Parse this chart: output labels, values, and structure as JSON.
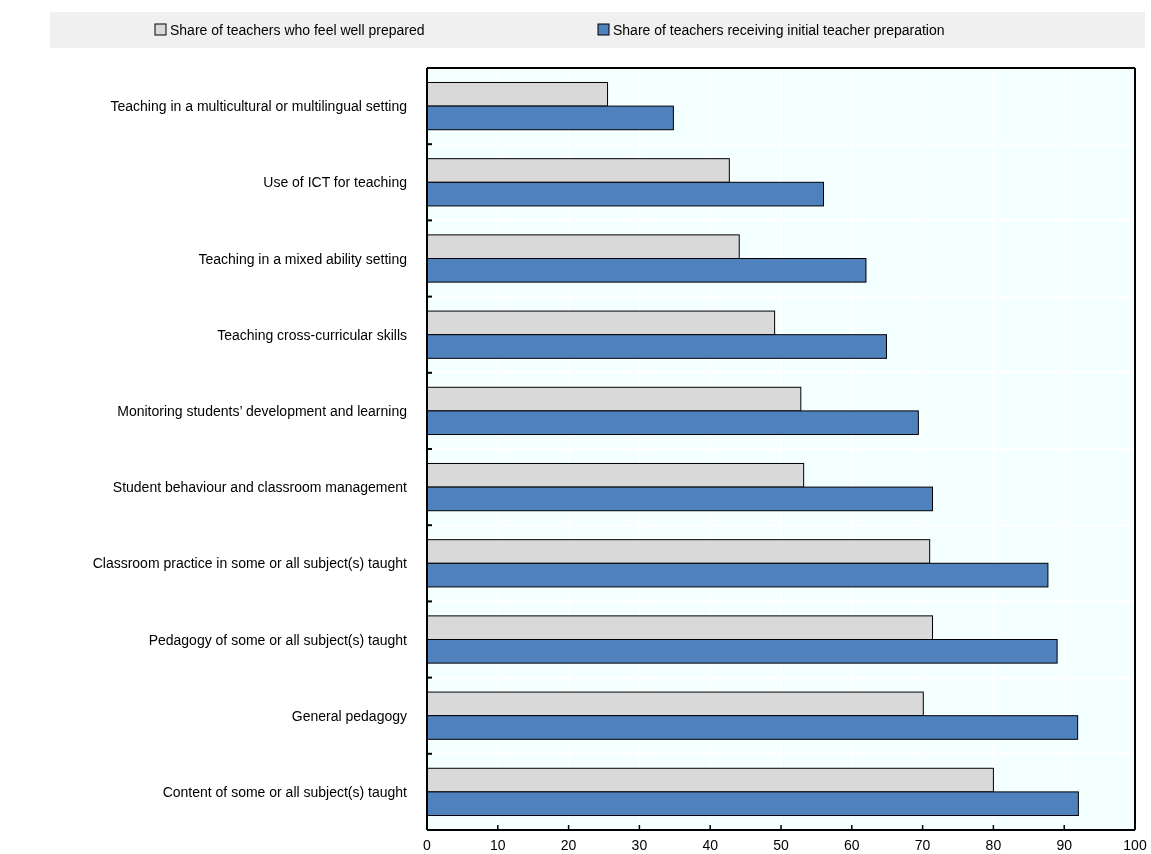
{
  "chart_data": {
    "type": "bar",
    "orientation": "horizontal",
    "categories": [
      "Teaching in a multicultural or multilingual setting",
      "Use of ICT for teaching",
      "Teaching in a mixed ability setting",
      "Teaching cross-curricular skills",
      "Monitoring students’ development and learning",
      "Student behaviour and classroom management",
      "Classroom practice in some or all subject(s) taught",
      "Pedagogy of some or all subject(s) taught",
      "General pedagogy",
      "Content of some or all subject(s) taught"
    ],
    "series": [
      {
        "name": "Share of teachers who feel well prepared",
        "color": "#d9d9d9",
        "values": [
          25.5,
          42.7,
          44.1,
          49.1,
          52.8,
          53.2,
          71.0,
          71.4,
          70.1,
          80.0
        ]
      },
      {
        "name": "Share of teachers receiving initial teacher preparation",
        "color": "#4f81bd",
        "values": [
          34.8,
          56.0,
          62.0,
          64.9,
          69.4,
          71.4,
          87.7,
          89.0,
          91.9,
          92.0
        ]
      }
    ],
    "xlim": [
      0,
      100
    ],
    "xticks": [
      0,
      10,
      20,
      30,
      40,
      50,
      60,
      70,
      80,
      90,
      100
    ],
    "grid": true,
    "legend": "top"
  }
}
